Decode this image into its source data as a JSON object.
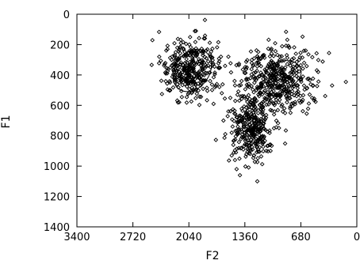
{
  "chart_data": {
    "type": "scatter",
    "xlabel": "F2",
    "ylabel": "F1",
    "xlim": [
      3400,
      0
    ],
    "ylim": [
      1400,
      0
    ],
    "x_reversed": true,
    "y_reversed": true,
    "grid": false,
    "x_ticks": [
      3400,
      2720,
      2040,
      1360,
      680,
      0
    ],
    "y_ticks": [
      0,
      200,
      400,
      600,
      800,
      1000,
      1200,
      1400
    ],
    "x_tick_labels": [
      "3400",
      "2720",
      "2040",
      "1360",
      "680",
      "0"
    ],
    "y_tick_labels": [
      "0",
      "200",
      "400",
      "600",
      "800",
      "1000",
      "1200",
      "1400"
    ],
    "marker": "diamond",
    "clusters": [
      {
        "center": [
          2020,
          360
        ],
        "spread": [
          170,
          95
        ],
        "n": 360
      },
      {
        "center": [
          1270,
          740
        ],
        "spread": [
          140,
          110
        ],
        "n": 330
      },
      {
        "center": [
          960,
          430
        ],
        "spread": [
          220,
          100
        ],
        "n": 420
      }
    ],
    "ellipses": [
      {
        "center": [
          2000,
          370
        ],
        "rx": 210,
        "ry": 150,
        "angle_deg": 35
      },
      {
        "center": [
          1300,
          730
        ],
        "rx": 90,
        "ry": 110,
        "angle_deg": 0
      },
      {
        "center": [
          900,
          400
        ],
        "rx": 230,
        "ry": 90,
        "angle_deg": -20
      }
    ],
    "outliers": [
      [
        2300,
        230
      ],
      [
        2250,
        300
      ],
      [
        2200,
        250
      ],
      [
        2150,
        220
      ],
      [
        2400,
        280
      ],
      [
        1740,
        590
      ],
      [
        1620,
        700
      ],
      [
        1560,
        640
      ],
      [
        1520,
        930
      ],
      [
        1480,
        960
      ],
      [
        1420,
        1060
      ],
      [
        1460,
        1020
      ],
      [
        1500,
        860
      ],
      [
        1560,
        280
      ],
      [
        1600,
        340
      ],
      [
        1700,
        460
      ],
      [
        1100,
        900
      ],
      [
        1060,
        860
      ],
      [
        1000,
        640
      ],
      [
        880,
        620
      ],
      [
        740,
        260
      ],
      [
        700,
        300
      ],
      [
        640,
        320
      ],
      [
        820,
        220
      ],
      [
        1180,
        520
      ],
      [
        1520,
        780
      ],
      [
        1640,
        520
      ],
      [
        1340,
        560
      ],
      [
        1400,
        440
      ],
      [
        1150,
        280
      ]
    ]
  }
}
